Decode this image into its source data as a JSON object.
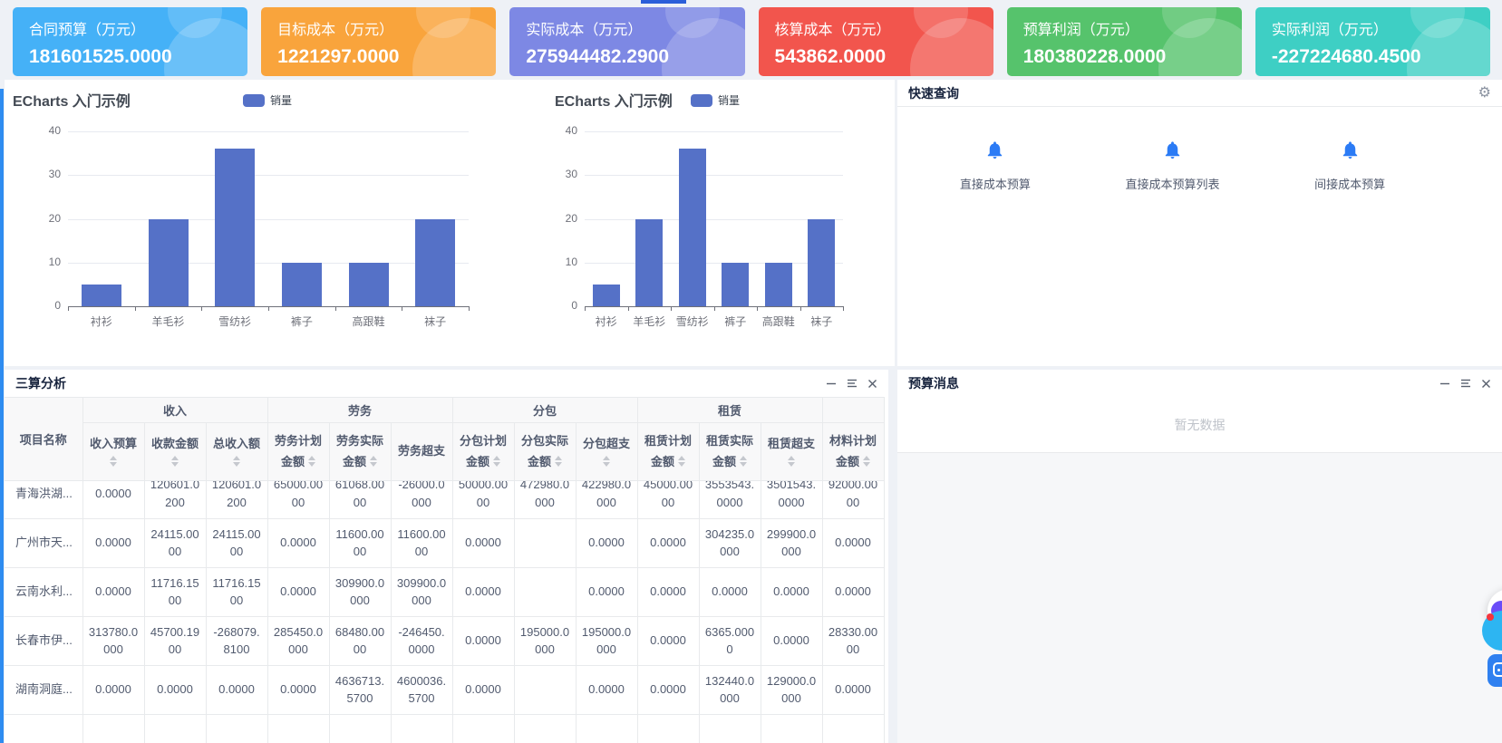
{
  "cards": [
    {
      "label": "合同预算（万元）",
      "value": "181601525.0000",
      "color": "#45b1f7"
    },
    {
      "label": "目标成本（万元）",
      "value": "1221297.0000",
      "color": "#f9a43c"
    },
    {
      "label": "实际成本（万元）",
      "value": "275944482.2900",
      "color": "#7d88e4"
    },
    {
      "label": "核算成本（万元）",
      "value": "543862.0000",
      "color": "#f2554d"
    },
    {
      "label": "预算利润（万元）",
      "value": "180380228.0000",
      "color": "#56c36c"
    },
    {
      "label": "实际利润（万元）",
      "value": "-227224680.4500",
      "color": "#3ecfc4"
    }
  ],
  "chart_data": [
    {
      "type": "bar",
      "title": "ECharts 入门示例",
      "legend": [
        "销量"
      ],
      "categories": [
        "衬衫",
        "羊毛衫",
        "雪纺衫",
        "裤子",
        "高跟鞋",
        "袜子"
      ],
      "series": [
        {
          "name": "销量",
          "values": [
            5,
            20,
            36,
            10,
            10,
            20
          ]
        }
      ],
      "xlabel": "",
      "ylabel": "",
      "ylim": [
        0,
        40
      ],
      "yticks": [
        40,
        30,
        20,
        10,
        0
      ],
      "grid": true,
      "legend_position": "top",
      "bar_color": "#5571c7"
    },
    {
      "type": "bar",
      "title": "ECharts 入门示例",
      "legend": [
        "销量"
      ],
      "categories": [
        "衬衫",
        "羊毛衫",
        "雪纺衫",
        "裤子",
        "高跟鞋",
        "袜子"
      ],
      "series": [
        {
          "name": "销量",
          "values": [
            5,
            20,
            36,
            10,
            10,
            20
          ]
        }
      ],
      "xlabel": "",
      "ylabel": "",
      "ylim": [
        0,
        40
      ],
      "yticks": [
        40,
        30,
        20,
        10,
        0
      ],
      "grid": true,
      "legend_position": "top",
      "bar_color": "#5571c7"
    }
  ],
  "quick_query": {
    "title": "快速查询",
    "items": [
      {
        "label": "直接成本预算"
      },
      {
        "label": "直接成本预算列表"
      },
      {
        "label": "间接成本预算"
      }
    ]
  },
  "analysis": {
    "title": "三算分析",
    "name_header": "项目名称",
    "groups": [
      {
        "label": "收入",
        "span": 3
      },
      {
        "label": "劳务",
        "span": 3
      },
      {
        "label": "分包",
        "span": 3
      },
      {
        "label": "租赁",
        "span": 3
      },
      {
        "label": "",
        "span": 1
      }
    ],
    "columns": [
      {
        "line1": "收入预算",
        "line2": "",
        "sort": true
      },
      {
        "line1": "收款金额",
        "line2": "",
        "sort": true
      },
      {
        "line1": "总收入额",
        "line2": "",
        "sort": true
      },
      {
        "line1": "劳务计划",
        "line2": "金额",
        "sort": true
      },
      {
        "line1": "劳务实际",
        "line2": "金额",
        "sort": true
      },
      {
        "line1": "劳务超支",
        "line2": "",
        "sort": false
      },
      {
        "line1": "分包计划",
        "line2": "金额",
        "sort": true
      },
      {
        "line1": "分包实际",
        "line2": "金额",
        "sort": true
      },
      {
        "line1": "分包超支",
        "line2": "",
        "sort": true
      },
      {
        "line1": "租赁计划",
        "line2": "金额",
        "sort": true
      },
      {
        "line1": "租赁实际",
        "line2": "金额",
        "sort": true
      },
      {
        "line1": "租赁超支",
        "line2": "",
        "sort": true
      },
      {
        "line1": "材料计划",
        "line2": "金额",
        "sort": true
      }
    ],
    "rows": [
      {
        "name": "青海洪湖...",
        "cells": [
          "0.0000",
          "120601.0200",
          "120601.0200",
          "65000.0000",
          "61068.0000",
          "-26000.0000",
          "50000.0000",
          "472980.0000",
          "422980.0000",
          "45000.0000",
          "3553543.0000",
          "3501543.0000",
          "92000.0000"
        ]
      },
      {
        "name": "广州市天...",
        "cells": [
          "0.0000",
          "24115.0000",
          "24115.0000",
          "0.0000",
          "11600.0000",
          "11600.0000",
          "0.0000",
          "",
          "0.0000",
          "0.0000",
          "304235.0000",
          "299900.0000",
          "0.0000"
        ]
      },
      {
        "name": "云南水利...",
        "cells": [
          "0.0000",
          "11716.1500",
          "11716.1500",
          "0.0000",
          "309900.0000",
          "309900.0000",
          "0.0000",
          "",
          "0.0000",
          "0.0000",
          "0.0000",
          "0.0000",
          "0.0000"
        ]
      },
      {
        "name": "长春市伊...",
        "cells": [
          "313780.0000",
          "45700.1900",
          "-268079.8100",
          "285450.0000",
          "68480.0000",
          "-246450.0000",
          "0.0000",
          "195000.0000",
          "195000.0000",
          "0.0000",
          "6365.0000",
          "0.0000",
          "28330.0000"
        ]
      },
      {
        "name": "湖南洞庭...",
        "cells": [
          "0.0000",
          "0.0000",
          "0.0000",
          "0.0000",
          "4636713.5700",
          "4600036.5700",
          "0.0000",
          "",
          "0.0000",
          "0.0000",
          "132440.0000",
          "129000.0000",
          "0.0000"
        ]
      }
    ]
  },
  "messages": {
    "title": "预算消息",
    "empty_text": "暂无数据"
  },
  "icons": {
    "settings": "⚙"
  }
}
